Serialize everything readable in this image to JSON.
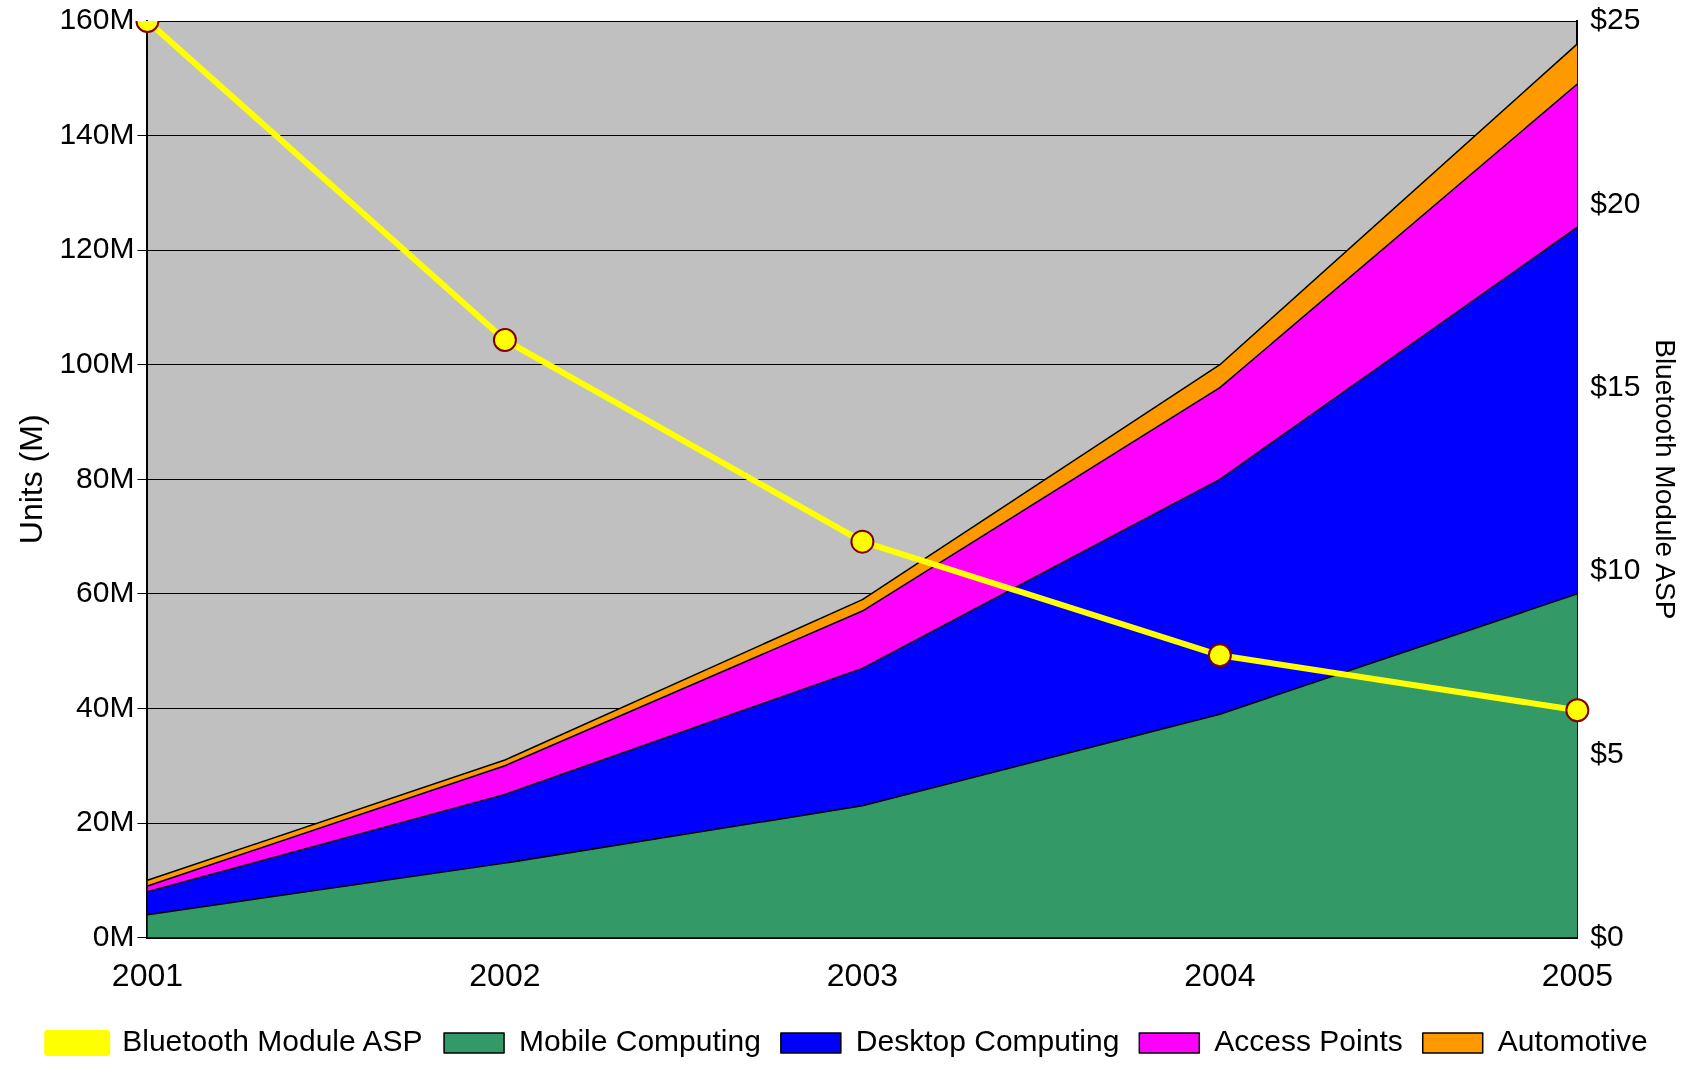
{
  "chart_data": {
    "type": "area",
    "stacked": true,
    "categories": [
      "2001",
      "2002",
      "2003",
      "2004",
      "2005"
    ],
    "ylabel": "Units (M)",
    "y2label": "Bluetooth Module ASP",
    "ylim": [
      0,
      160
    ],
    "yticks": [
      {
        "value": 0,
        "label": "0M"
      },
      {
        "value": 20,
        "label": "20M"
      },
      {
        "value": 40,
        "label": "40M"
      },
      {
        "value": 60,
        "label": "60M"
      },
      {
        "value": 80,
        "label": "80M"
      },
      {
        "value": 100,
        "label": "100M"
      },
      {
        "value": 120,
        "label": "120M"
      },
      {
        "value": 140,
        "label": "140M"
      },
      {
        "value": 160,
        "label": "160M"
      }
    ],
    "y2lim": [
      0,
      25
    ],
    "y2ticks": [
      {
        "value": 0,
        "label": "$0"
      },
      {
        "value": 5,
        "label": "$5"
      },
      {
        "value": 10,
        "label": "$10"
      },
      {
        "value": 15,
        "label": "$15"
      },
      {
        "value": 20,
        "label": "$20"
      },
      {
        "value": 25,
        "label": "$25"
      }
    ],
    "grid": "y",
    "legend": "bottom",
    "series": [
      {
        "name": "Mobile Computing",
        "color": "#339966",
        "values": [
          4,
          13,
          23,
          39,
          60
        ]
      },
      {
        "name": "Desktop Computing",
        "color": "#0000ff",
        "values": [
          4,
          12,
          24,
          41,
          64
        ]
      },
      {
        "name": "Access Points",
        "color": "#ff00ff",
        "values": [
          1,
          5,
          10,
          16,
          25
        ]
      },
      {
        "name": "Automotive",
        "color": "#ff9900",
        "values": [
          1,
          1,
          2,
          4,
          7
        ]
      },
      {
        "name": "Bluetooth Module ASP",
        "type": "line",
        "axis": "y2",
        "color": "#ffff00",
        "marker": "circle",
        "values": [
          25,
          16.3,
          10.8,
          7.7,
          6.2
        ]
      }
    ]
  }
}
